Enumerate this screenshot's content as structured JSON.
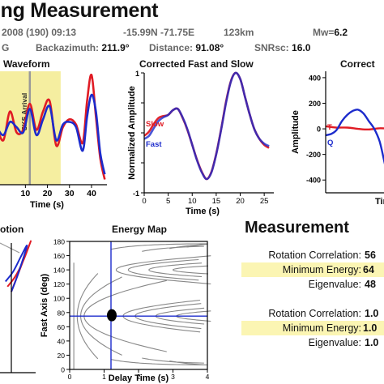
{
  "title": "ing Measurement",
  "header": {
    "line1": {
      "date": "2008 (190) 09:13",
      "coords": "-15.99N -71.75E",
      "depth": "123km",
      "mw_label": "Mw=",
      "mw_value": "6.2"
    },
    "line2": {
      "prefix": "G",
      "baz_label": "Backazimuth:",
      "baz_value": "211.9°",
      "dist_label": "Distance:",
      "dist_value": "91.08°",
      "snr_label": "SNRsc:",
      "snr_value": "16.0"
    }
  },
  "colors": {
    "slow": "#e01b24",
    "fast": "#1c2bcc",
    "highlight": "#f5eea0",
    "measure_hl": "#fbf5b3",
    "contour": "#888888"
  },
  "chart_data": [
    {
      "type": "line",
      "title": "Waveform",
      "xlabel": "Time (s)",
      "x_ticks": [
        10,
        20,
        30,
        40
      ],
      "xlim": [
        -3,
        47
      ],
      "annotation": "SKS Arrival",
      "highlight_window": [
        -3,
        26
      ],
      "series": [
        {
          "color": "#e01b24",
          "x": [
            -3,
            0,
            3,
            6,
            9,
            12,
            15,
            18,
            21,
            24,
            27,
            30,
            33,
            36,
            38,
            40,
            42,
            44,
            46
          ],
          "y": [
            0.0,
            -0.25,
            0.3,
            -0.1,
            -0.05,
            0.45,
            -0.05,
            0.3,
            0.5,
            -0.35,
            0.0,
            0.15,
            0.05,
            -0.3,
            0.5,
            1.0,
            0.2,
            -0.6,
            -1.0
          ]
        },
        {
          "color": "#1c2bcc",
          "x": [
            -3,
            0,
            3,
            6,
            9,
            12,
            15,
            18,
            21,
            24,
            27,
            30,
            33,
            36,
            38,
            40,
            42,
            44,
            46
          ],
          "y": [
            0.0,
            -0.15,
            0.1,
            0.0,
            -0.1,
            0.35,
            -0.15,
            0.15,
            0.4,
            -0.25,
            0.05,
            0.1,
            0.0,
            -0.45,
            0.2,
            0.62,
            0.3,
            -0.5,
            -0.9
          ]
        }
      ]
    },
    {
      "type": "line",
      "title": "Corrected Fast and Slow",
      "xlabel": "Time (s)",
      "ylabel": "Normalized Amplitude",
      "xlim": [
        0,
        27
      ],
      "ylim": [
        -1,
        1
      ],
      "x_ticks": [
        0,
        5,
        10,
        15,
        20,
        25
      ],
      "y_ticks": [
        -1,
        -0.5,
        0,
        0.5,
        1
      ],
      "series": [
        {
          "name": "Slow",
          "color": "#e01b24",
          "x": [
            0,
            1,
            2,
            3,
            4,
            5,
            6,
            7,
            8,
            9,
            10,
            11,
            12,
            13,
            14,
            15,
            16,
            17,
            18,
            19,
            20,
            21,
            22,
            23,
            24,
            25,
            26
          ],
          "y": [
            -0.05,
            0.02,
            0.15,
            0.25,
            0.28,
            0.3,
            0.38,
            0.4,
            0.25,
            0.05,
            -0.2,
            -0.45,
            -0.65,
            -0.77,
            -0.65,
            -0.35,
            0.05,
            0.5,
            0.85,
            1.0,
            0.9,
            0.6,
            0.3,
            0.05,
            -0.1,
            -0.2,
            -0.25
          ]
        },
        {
          "name": "Fast",
          "color": "#1c2bcc",
          "x": [
            0,
            1,
            2,
            3,
            4,
            5,
            6,
            7,
            8,
            9,
            10,
            11,
            12,
            13,
            14,
            15,
            16,
            17,
            18,
            19,
            20,
            21,
            22,
            23,
            24,
            25,
            26
          ],
          "y": [
            -0.1,
            -0.05,
            0.08,
            0.2,
            0.26,
            0.3,
            0.38,
            0.4,
            0.26,
            0.06,
            -0.2,
            -0.46,
            -0.66,
            -0.77,
            -0.66,
            -0.36,
            0.04,
            0.48,
            0.84,
            1.0,
            0.9,
            0.6,
            0.3,
            0.05,
            -0.1,
            -0.18,
            -0.22
          ]
        }
      ]
    },
    {
      "type": "line",
      "title": "Correct",
      "xlabel": "Tim",
      "ylabel": "Amplitude",
      "y_ticks": [
        400,
        200,
        0,
        -200,
        -400
      ],
      "ylim": [
        -500,
        450
      ],
      "xlim": [
        0,
        12
      ],
      "series": [
        {
          "name": "T",
          "color": "#e01b24",
          "x": [
            0,
            2,
            4,
            6,
            8,
            10,
            12
          ],
          "y": [
            20,
            10,
            10,
            0,
            -5,
            5,
            0
          ]
        },
        {
          "name": "Q",
          "color": "#1c2bcc",
          "x": [
            0,
            1,
            2,
            3,
            4,
            5,
            6,
            7,
            8,
            9,
            10,
            11,
            12
          ],
          "y": [
            -50,
            -40,
            -10,
            60,
            110,
            140,
            150,
            120,
            60,
            0,
            -100,
            -280,
            -450
          ]
        }
      ]
    },
    {
      "type": "line",
      "title": "otion",
      "series": [
        {
          "color": "#e01b24",
          "x": [
            0,
            0.5,
            1,
            0.6,
            0.2,
            -0.2
          ],
          "y": [
            0,
            0.5,
            1,
            0.6,
            0.3,
            0.1
          ]
        },
        {
          "color": "#1c2bcc",
          "x": [
            0,
            0.3,
            0.8,
            0.5,
            0.1,
            -0.3
          ],
          "y": [
            0,
            0.3,
            0.9,
            0.7,
            0.4,
            0.2
          ]
        }
      ]
    },
    {
      "type": "heatmap",
      "title": "Energy Map",
      "xlabel": "Delay Time (s)",
      "ylabel": "Fast Axis (deg)",
      "xlim": [
        0,
        4
      ],
      "ylim": [
        0,
        180
      ],
      "x_ticks": [
        0,
        1,
        2,
        3,
        4
      ],
      "y_ticks": [
        0,
        20,
        40,
        60,
        80,
        100,
        120,
        140,
        160,
        180
      ],
      "best": {
        "delay": 1.2,
        "fast_axis": 75
      }
    }
  ],
  "measurement": {
    "title": "Measurement",
    "rows": [
      {
        "label": "Rotation Correlation:",
        "value": "56",
        "highlight": false
      },
      {
        "label": "Minimum Energy:",
        "value": "64",
        "highlight": true
      },
      {
        "label": "Eigenvalue:",
        "value": "48",
        "highlight": false
      },
      {
        "label": "Rotation Correlation:",
        "value": "1.0",
        "highlight": false
      },
      {
        "label": "Minimum Energy:",
        "value": "1.0",
        "highlight": true
      },
      {
        "label": "Eigenvalue:",
        "value": "1.0",
        "highlight": false
      }
    ]
  }
}
